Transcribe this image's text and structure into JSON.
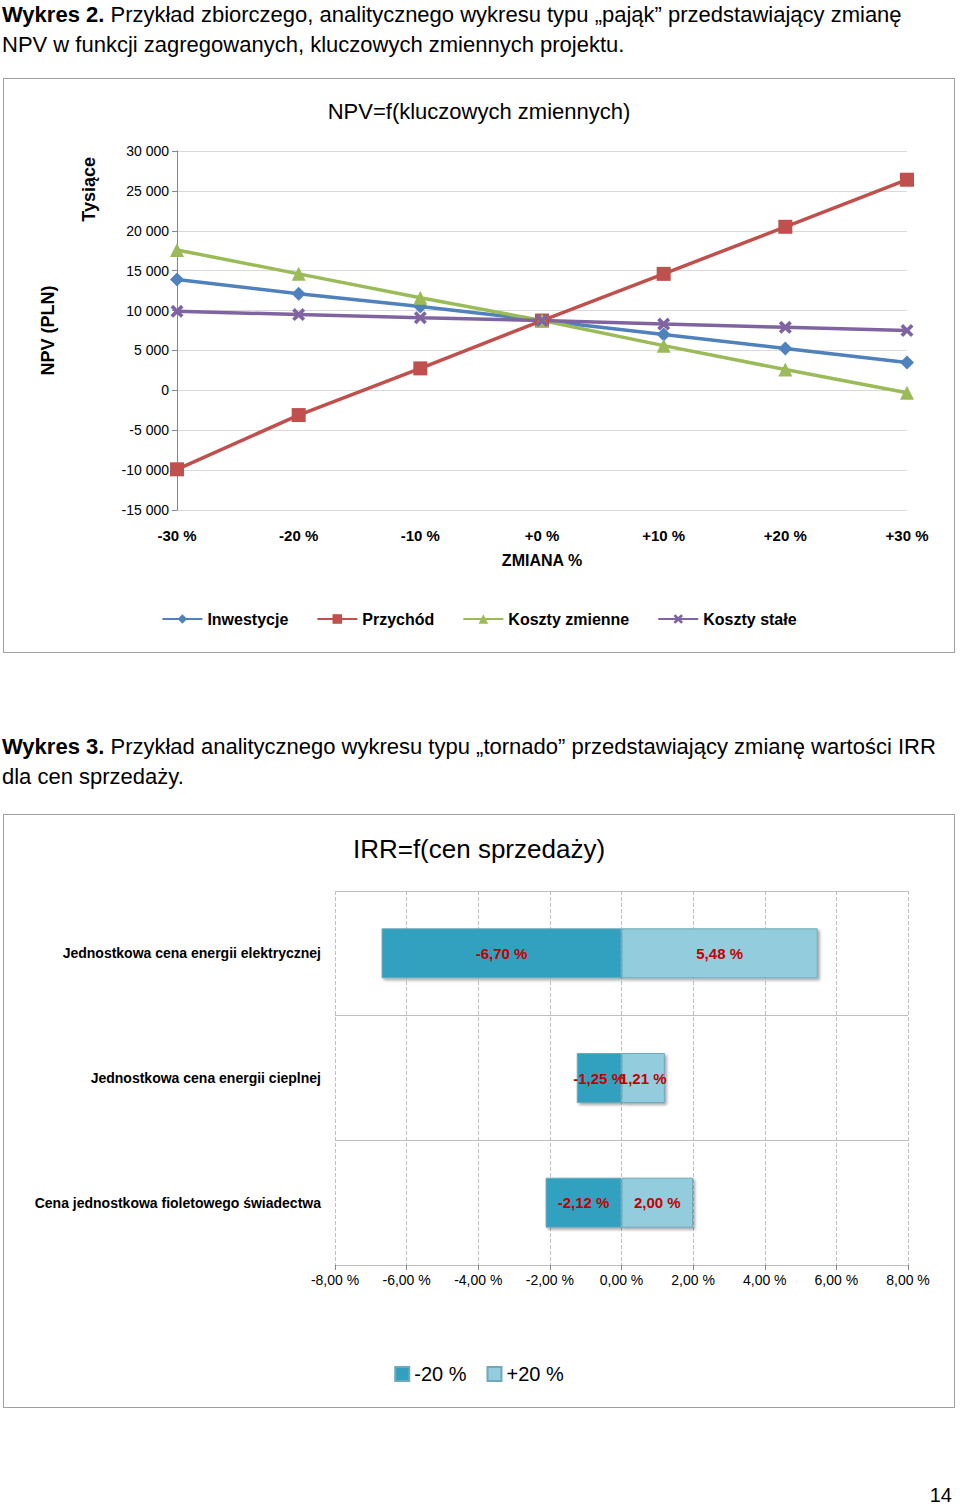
{
  "chart_data": [
    {
      "type": "line",
      "title": "NPV=f(kluczowych zmiennych)",
      "x_label": "ZMIANA %",
      "y_label": "NPV (PLN)",
      "y_unit": "Tysiące",
      "categories": [
        "-30 %",
        "-20 %",
        "-10 %",
        "+0 %",
        "+10 %",
        "+20 %",
        "+30 %"
      ],
      "series": [
        {
          "name": "Inwestycje",
          "color": "#4f81bd",
          "marker": "diamond",
          "values": [
            13900,
            12100,
            10500,
            8750,
            7000,
            5250,
            3500
          ]
        },
        {
          "name": "Przychód",
          "color": "#c0504d",
          "marker": "square",
          "values": [
            -9900,
            -3100,
            2750,
            8750,
            14600,
            20500,
            26400
          ]
        },
        {
          "name": "Koszty zmienne",
          "color": "#9bbb59",
          "marker": "triangle",
          "values": [
            17600,
            14600,
            11600,
            8750,
            5600,
            2600,
            -300
          ]
        },
        {
          "name": "Koszty stałe",
          "color": "#8064a2",
          "marker": "x",
          "values": [
            9900,
            9500,
            9100,
            8750,
            8300,
            7900,
            7500
          ]
        }
      ],
      "ylim": [
        -15000,
        30000
      ],
      "yticks": [
        {
          "value": -15000,
          "label": "-15 000"
        },
        {
          "value": -10000,
          "label": "-10 000"
        },
        {
          "value": -5000,
          "label": "-5 000"
        },
        0,
        {
          "value": 5000,
          "label": "5 000"
        },
        {
          "value": 10000,
          "label": "10 000"
        },
        {
          "value": 15000,
          "label": "15 000"
        },
        {
          "value": 20000,
          "label": "20 000"
        },
        {
          "value": 25000,
          "label": "25 000"
        },
        {
          "value": 30000,
          "label": "30 000"
        }
      ],
      "grid": true,
      "legend": "bottom"
    },
    {
      "type": "bar",
      "title": "IRR=f(cen sprzedaży)",
      "orientation": "horizontal",
      "stacked": true,
      "data_labels": true,
      "categories": [
        "Jednostkowa cena energii elektrycznej",
        "Jednostkowa cena energii cieplnej",
        "Cena jednostkowa fioletowego świadectwa"
      ],
      "series": [
        {
          "name": "-20 %",
          "color": "#31a0bf",
          "values": [
            -6.7,
            -1.25,
            -2.12
          ],
          "value_labels": [
            "-6,70 %",
            "-1,25 %",
            "-2,12 %"
          ]
        },
        {
          "name": "+20 %",
          "color": "#93cddd",
          "values": [
            5.48,
            1.21,
            2.0
          ],
          "value_labels": [
            "5,48 %",
            "1,21 %",
            "2,00 %"
          ]
        }
      ],
      "xlim": [
        -8,
        8
      ],
      "xticks": [
        {
          "value": -8,
          "label": "-8,00 %"
        },
        {
          "value": -6,
          "label": "-6,00 %"
        },
        {
          "value": -4,
          "label": "-4,00 %"
        },
        {
          "value": -2,
          "label": "-2,00 %"
        },
        {
          "value": 0,
          "label": "0,00 %"
        },
        {
          "value": 2,
          "label": "2,00 %"
        },
        {
          "value": 4,
          "label": "4,00 %"
        },
        {
          "value": 6,
          "label": "6,00 %"
        },
        {
          "value": 8,
          "label": "8,00 %"
        }
      ],
      "grid": true,
      "legend": "bottom"
    }
  ],
  "page": {
    "captions": [
      {
        "label": "Wykres 2.",
        "text": "Przykład zbiorczego, analitycznego wykresu typu „pająk” przedstawiający zmianę NPV w funkcji zagregowanych, kluczowych zmiennych projektu."
      },
      {
        "label": "Wykres 3.",
        "text": "Przykład analitycznego wykresu typu „tornado” przedstawiający zmianę wartości IRR dla cen sprzedaży."
      }
    ],
    "page_number": 14
  }
}
